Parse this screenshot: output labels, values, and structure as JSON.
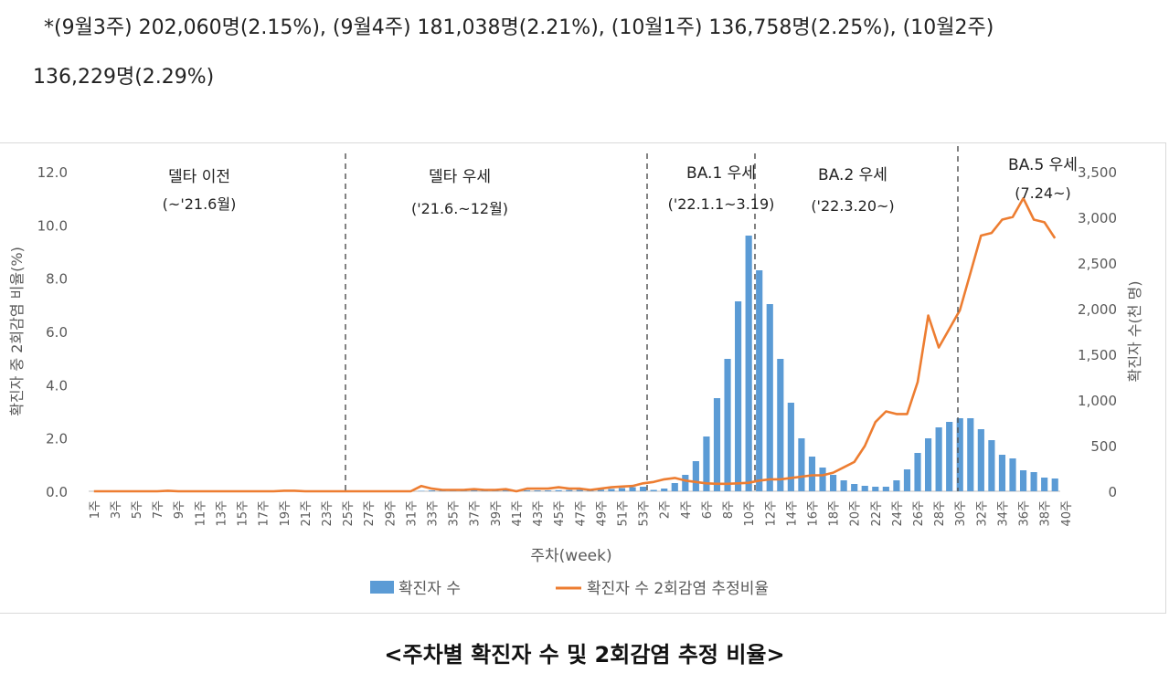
{
  "notes": {
    "line1": "*(9월3주) 202,060명(2.15%), (9월4주) 181,038명(2.21%), (10월1주) 136,758명(2.25%), (10월2주)",
    "line2": "136,229명(2.29%)"
  },
  "caption": "<주차별 확진자 수 및 2회감염 추정 비율>",
  "colors": {
    "bar": "#5b9bd5",
    "line": "#ed7d31",
    "divider": "#595959",
    "axis_text": "#595959"
  },
  "chart_data": {
    "type": "bar+line",
    "xlabel": "주차(week)",
    "ylabel_left": "확진자 중 2회감염 비율(%)",
    "ylabel_right": "확진자 수(천 명)",
    "ylim_left": [
      0,
      12
    ],
    "ylim_right": [
      0,
      3500
    ],
    "yticks_left": [
      "0.0",
      "2.0",
      "4.0",
      "6.0",
      "8.0",
      "10.0",
      "12.0"
    ],
    "yticks_right": [
      "0",
      "500",
      "1,000",
      "1,500",
      "2,000",
      "2,500",
      "3,000",
      "3,500"
    ],
    "tick_labels": [
      "1주",
      "3주",
      "5주",
      "7주",
      "9주",
      "11주",
      "13주",
      "15주",
      "17주",
      "19주",
      "21주",
      "23주",
      "25주",
      "27주",
      "29주",
      "31주",
      "33주",
      "35주",
      "37주",
      "39주",
      "41주",
      "43주",
      "45주",
      "47주",
      "49주",
      "51주",
      "53주",
      "2주",
      "4주",
      "6주",
      "8주",
      "10주",
      "12주",
      "14주",
      "16주",
      "18주",
      "20주",
      "22주",
      "24주",
      "26주",
      "28주",
      "30주",
      "32주",
      "34주",
      "36주",
      "38주",
      "40주"
    ],
    "series": [
      {
        "name": "확진자 수",
        "type": "bar",
        "axis": "right",
        "values": [
          0,
          0,
          0,
          0,
          0,
          0,
          0,
          0,
          0,
          0,
          0,
          0,
          0,
          0,
          0,
          0,
          0,
          0,
          0,
          0,
          0,
          0,
          0,
          0,
          0,
          0,
          0,
          0,
          0,
          0,
          0,
          5,
          10,
          12,
          14,
          15,
          16,
          16,
          15,
          14,
          12,
          11,
          10,
          10,
          12,
          14,
          15,
          16,
          18,
          25,
          35,
          45,
          50,
          15,
          30,
          90,
          180,
          330,
          600,
          1020,
          1450,
          2080,
          2800,
          2420,
          2050,
          1450,
          970,
          580,
          380,
          260,
          180,
          120,
          80,
          60,
          50,
          50,
          120,
          240,
          420,
          580,
          700,
          760,
          800,
          800,
          680,
          560,
          400,
          360,
          230,
          210,
          150,
          140
        ]
      },
      {
        "name": "확진자 수 2회감염 추정비율",
        "type": "line",
        "axis": "left",
        "values": [
          0.0,
          0.0,
          0.0,
          0.0,
          0.0,
          0.0,
          0.0,
          0.02,
          0.0,
          0.0,
          0.0,
          0.0,
          0.0,
          0.0,
          0.0,
          0.0,
          0.0,
          0.0,
          0.02,
          0.02,
          0.0,
          0.0,
          0.0,
          0.0,
          0.0,
          0.0,
          0.0,
          0.0,
          0.0,
          0.0,
          0.0,
          0.2,
          0.1,
          0.05,
          0.05,
          0.05,
          0.08,
          0.05,
          0.05,
          0.08,
          0.0,
          0.1,
          0.1,
          0.1,
          0.15,
          0.1,
          0.1,
          0.05,
          0.1,
          0.15,
          0.18,
          0.2,
          0.3,
          0.35,
          0.45,
          0.5,
          0.4,
          0.35,
          0.3,
          0.28,
          0.28,
          0.3,
          0.32,
          0.4,
          0.45,
          0.45,
          0.5,
          0.55,
          0.6,
          0.6,
          0.7,
          0.9,
          1.1,
          1.7,
          2.6,
          3.0,
          2.9,
          2.9,
          4.1,
          6.6,
          5.4,
          6.1,
          6.8,
          8.2,
          9.6,
          9.7,
          10.2,
          10.3,
          11.0,
          10.2,
          10.1,
          9.5
        ]
      }
    ],
    "periods": [
      {
        "name": "델타 이전",
        "range": "(~'21.6월)"
      },
      {
        "name": "델타 우세",
        "range": "('21.6.~12월)"
      },
      {
        "name": "BA.1 우세",
        "range": "('22.1.1~3.19)"
      },
      {
        "name": "BA.2 우세",
        "range": "('22.3.20~)"
      },
      {
        "name": "BA.5 우세",
        "range": "(7.24~)"
      }
    ],
    "legend": [
      {
        "label": "확진자 수",
        "kind": "bar"
      },
      {
        "label": "확진자 수 2회감염 추정비율",
        "kind": "line"
      }
    ]
  }
}
